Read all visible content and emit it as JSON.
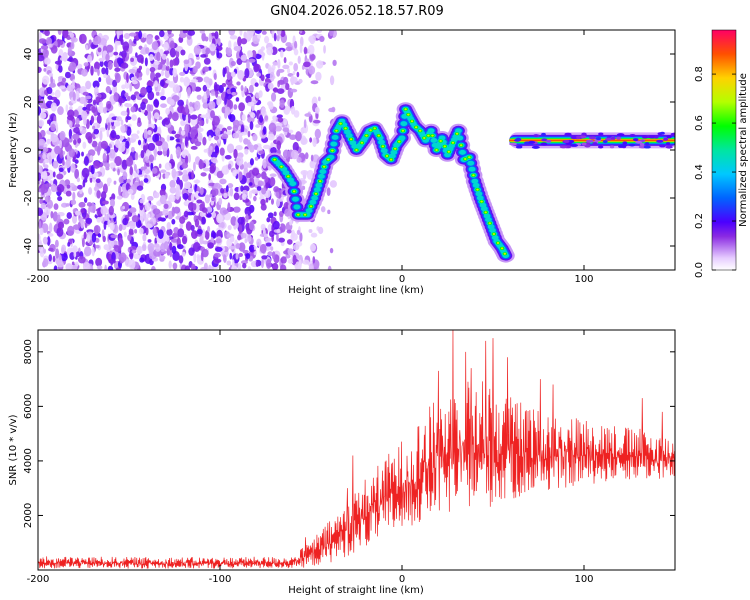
{
  "figure": {
    "title": "GN04.2026.052.18.57.R09"
  },
  "chart_data": [
    {
      "type": "heatmap",
      "title": "GN04.2026.052.18.57.R09",
      "xlabel": "Height of straight line (km)",
      "ylabel": "Frequency (Hz)",
      "xlim": [
        -200,
        150
      ],
      "ylim": [
        -50,
        50
      ],
      "xticks": [
        -200,
        -100,
        0,
        100
      ],
      "yticks": [
        -40,
        -20,
        0,
        20,
        40
      ],
      "noise_region_x": [
        -200,
        -45
      ],
      "track": {
        "x": [
          -70,
          -65,
          -60,
          -57,
          -52,
          -48,
          -45,
          -42,
          -39,
          -36,
          -33,
          -29,
          -25,
          -21,
          -18,
          -15,
          -12,
          -9,
          -6,
          -3,
          0,
          2,
          4,
          7,
          10,
          13,
          16,
          19,
          22,
          25,
          28,
          31,
          34,
          37,
          40,
          43,
          46,
          49,
          52,
          55,
          57
        ],
        "y": [
          -4,
          -8,
          -14,
          -27,
          -27,
          -20,
          -13,
          -5,
          -3,
          8,
          12,
          6,
          0,
          4,
          8,
          9,
          5,
          -2,
          -4,
          2,
          5,
          17,
          14,
          10,
          8,
          4,
          8,
          0,
          5,
          -2,
          3,
          8,
          -4,
          -3,
          -13,
          -20,
          -26,
          -32,
          -38,
          -41,
          -44
        ]
      },
      "carrier": {
        "x_range": [
          60,
          150
        ],
        "frequency": 4
      },
      "colorbar": {
        "label": "Normalized spectral amplitude",
        "ticks": [
          0.0,
          0.2,
          0.4,
          0.6,
          0.8
        ],
        "range": [
          0,
          0.98
        ]
      }
    },
    {
      "type": "line",
      "xlabel": "Height of straight line (km)",
      "ylabel": "SNR (10 * v/v)",
      "xlim": [
        -200,
        150
      ],
      "ylim": [
        0,
        8800
      ],
      "xticks": [
        -200,
        -100,
        0,
        100
      ],
      "yticks": [
        2000,
        4000,
        6000,
        8000
      ],
      "color": "#ee2222",
      "envelope": {
        "x": [
          -200,
          -150,
          -100,
          -60,
          -50,
          -40,
          -30,
          -20,
          -10,
          0,
          10,
          20,
          30,
          40,
          50,
          60,
          70,
          80,
          90,
          100,
          110,
          120,
          130,
          140,
          150
        ],
        "low": [
          60,
          50,
          50,
          60,
          100,
          250,
          500,
          800,
          1100,
          1400,
          1700,
          1900,
          2100,
          2200,
          2300,
          2500,
          2700,
          2900,
          3000,
          3100,
          3200,
          3300,
          3300,
          3300,
          3300
        ],
        "high": [
          500,
          480,
          470,
          500,
          1100,
          1800,
          2600,
          3400,
          4100,
          4800,
          5600,
          6400,
          7000,
          7100,
          6900,
          6400,
          6000,
          5800,
          5700,
          5600,
          5500,
          5300,
          5200,
          5000,
          4900
        ]
      },
      "peaks": [
        {
          "x": -53,
          "y": 1200
        },
        {
          "x": -30,
          "y": 3000
        },
        {
          "x": -27,
          "y": 4200
        },
        {
          "x": 20,
          "y": 7300
        },
        {
          "x": 28,
          "y": 8800
        },
        {
          "x": 35,
          "y": 8000
        },
        {
          "x": 38,
          "y": 7400
        },
        {
          "x": 46,
          "y": 8400
        },
        {
          "x": 50,
          "y": 8500
        },
        {
          "x": 58,
          "y": 7800
        },
        {
          "x": 76,
          "y": 7000
        },
        {
          "x": 83,
          "y": 6800
        },
        {
          "x": 132,
          "y": 6300
        },
        {
          "x": 143,
          "y": 5800
        }
      ]
    }
  ]
}
